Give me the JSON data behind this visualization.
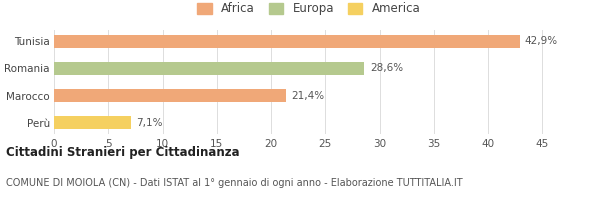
{
  "categories": [
    "Tunisia",
    "Romania",
    "Marocco",
    "Perù"
  ],
  "values": [
    42.9,
    28.6,
    21.4,
    7.1
  ],
  "bar_colors": [
    "#f0a878",
    "#b5c98e",
    "#f0a878",
    "#f5d060"
  ],
  "labels": [
    "42,9%",
    "28,6%",
    "21,4%",
    "7,1%"
  ],
  "legend": [
    {
      "label": "Africa",
      "color": "#f0a878"
    },
    {
      "label": "Europa",
      "color": "#b5c98e"
    },
    {
      "label": "America",
      "color": "#f5d060"
    }
  ],
  "xlim": [
    0,
    47
  ],
  "xticks": [
    0,
    5,
    10,
    15,
    20,
    25,
    30,
    35,
    40,
    45
  ],
  "title_bold": "Cittadini Stranieri per Cittadinanza",
  "subtitle": "COMUNE DI MOIOLA (CN) - Dati ISTAT al 1° gennaio di ogni anno - Elaborazione TUTTITALIA.IT",
  "background_color": "#ffffff",
  "bar_height": 0.5,
  "label_fontsize": 7.5,
  "tick_fontsize": 7.5,
  "ylabel_fontsize": 7.5,
  "legend_fontsize": 8.5,
  "title_fontsize": 8.5,
  "subtitle_fontsize": 7.0
}
